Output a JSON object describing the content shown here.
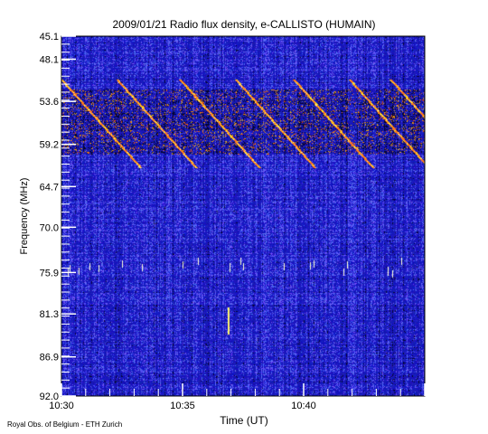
{
  "chart_data": {
    "type": "heatmap",
    "title": "2009/01/21  Radio flux density, e-CALLISTO (HUMAIN)",
    "xlabel": "Time (UT)",
    "ylabel": "Frequency (MHz)",
    "x_range": [
      "10:30",
      "10:45"
    ],
    "y_range_mhz": [
      45.1,
      92.0
    ],
    "y_axis_inverted": true,
    "y_ticks": [
      "45.1",
      "48.1",
      "53.6",
      "59.2",
      "64.7",
      "70.0",
      "75.9",
      "81.3",
      "86.9",
      "92.0"
    ],
    "y_tick_values": [
      45.1,
      48.1,
      53.6,
      59.2,
      64.7,
      70.0,
      75.9,
      81.3,
      86.9,
      92.0
    ],
    "x_ticks": [
      "10:30",
      "10:35",
      "10:40"
    ],
    "x_tick_minutes": [
      0,
      5,
      10
    ],
    "x_span_minutes": 15,
    "colormap": [
      "#000000",
      "#1a1acc",
      "#4646ff",
      "#ff3300",
      "#ffaa00",
      "#ffff99"
    ],
    "features": {
      "intense_band_mhz": [
        52.0,
        60.5
      ],
      "drifting_bursts_start_minutes": [
        0.0,
        2.3,
        4.9,
        7.2,
        9.6,
        11.9,
        13.6
      ]
    }
  },
  "footer": "Royal Obs. of Belgium - ETH Zurich"
}
